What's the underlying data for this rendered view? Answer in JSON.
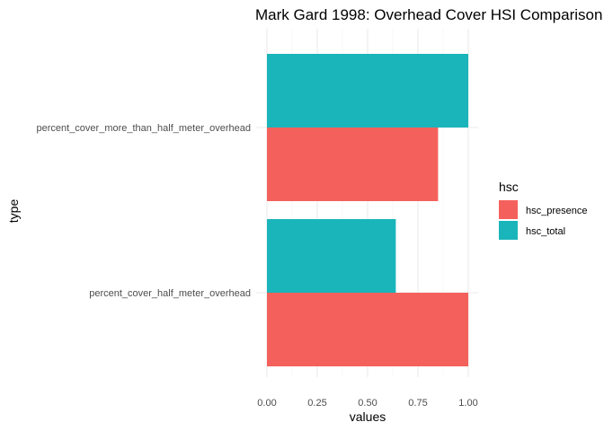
{
  "chart_data": {
    "type": "bar",
    "orientation": "horizontal",
    "title": "Mark Gard 1998: Overhead Cover HSI Comparison",
    "xlabel": "values",
    "ylabel": "type",
    "xlim": [
      0,
      1
    ],
    "x_ticks": [
      "0.00",
      "0.25",
      "0.50",
      "0.75",
      "1.00"
    ],
    "categories": [
      "percent_cover_half_meter_overhead",
      "percent_cover_more_than_half_meter_overhead"
    ],
    "series": [
      {
        "name": "hsc_presence",
        "color": "#F8766D",
        "values": [
          1.0,
          0.85
        ]
      },
      {
        "name": "hsc_total",
        "color": "#00BFC4",
        "values": [
          0.64,
          1.0
        ]
      }
    ],
    "legend": {
      "title": "hsc",
      "position": "right"
    },
    "grid": true,
    "bar_colors": {
      "hsc_presence": "#F4615C",
      "hsc_total": "#1AB5BA"
    }
  }
}
